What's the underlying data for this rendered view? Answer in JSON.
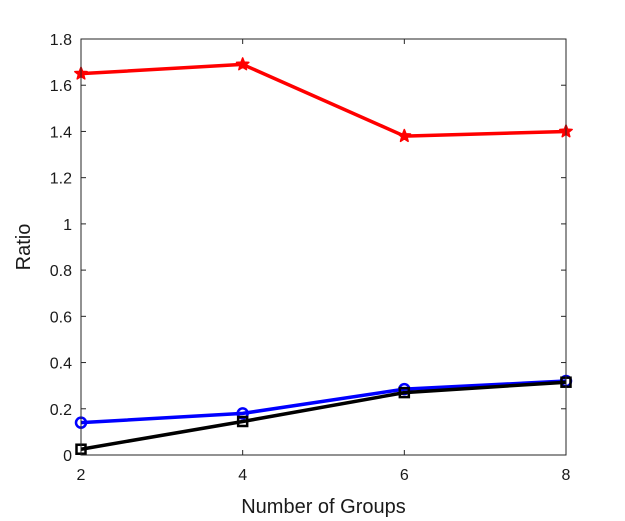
{
  "chart_data": {
    "type": "line",
    "xlabel": "Number of Groups",
    "ylabel": "Ratio",
    "x": [
      2,
      4,
      6,
      8
    ],
    "xlim": [
      2,
      8
    ],
    "ylim": [
      0,
      1.8
    ],
    "xticks": [
      "2",
      "4",
      "6",
      "8"
    ],
    "yticks": [
      "0",
      "0.2",
      "0.4",
      "0.6",
      "0.8",
      "1",
      "1.2",
      "1.4",
      "1.6",
      "1.8"
    ],
    "grid": false,
    "legend": "none",
    "series": [
      {
        "color": "#ff0000",
        "marker": "star",
        "values": [
          1.65,
          1.69,
          1.38,
          1.4
        ]
      },
      {
        "color": "#0000ff",
        "marker": "circle",
        "values": [
          0.14,
          0.18,
          0.285,
          0.32
        ]
      },
      {
        "color": "#000000",
        "marker": "square",
        "values": [
          0.025,
          0.145,
          0.27,
          0.315
        ]
      }
    ]
  }
}
